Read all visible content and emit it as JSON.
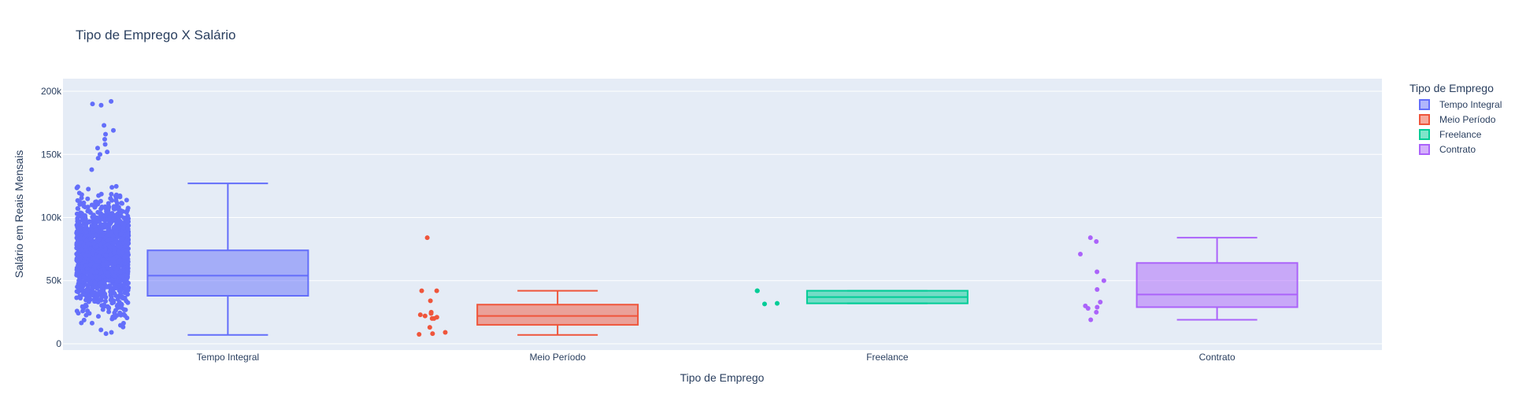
{
  "chart_data": {
    "type": "box",
    "title": "Tipo de Emprego X Salário",
    "xlabel": "Tipo de Emprego",
    "ylabel": "Salário em Reais Mensais",
    "ylim": [
      -5000,
      210000
    ],
    "yticks": [
      0,
      50000,
      100000,
      150000,
      200000
    ],
    "ytick_labels": [
      "0",
      "50k",
      "100k",
      "150k",
      "200k"
    ],
    "categories": [
      "Tempo Integral",
      "Meio Período",
      "Freelance",
      "Contrato"
    ],
    "legend": {
      "title": "Tipo de Emprego",
      "position": "top-right"
    },
    "grid": true,
    "boxpoints": "all",
    "series": [
      {
        "name": "Tempo Integral",
        "color": "#636efa",
        "min": 7000,
        "q1": 38000,
        "median": 54000,
        "q3": 74000,
        "max": 127000,
        "points": [
          192000,
          190000,
          189000,
          173000,
          169000,
          166000,
          162000,
          158000,
          155000,
          152000,
          150000,
          147000,
          9000,
          11000,
          8000
        ]
      },
      {
        "name": "Meio Período",
        "color": "#ef553b",
        "min": 7000,
        "q1": 15000,
        "median": 22000,
        "q3": 31000,
        "max": 42000,
        "points": [
          84000,
          42000,
          42000,
          34000,
          25000,
          24000,
          23000,
          22000,
          21000,
          20000,
          20000,
          13000,
          9000,
          8000,
          7500
        ]
      },
      {
        "name": "Freelance",
        "color": "#00cc96",
        "min": 32000,
        "q1": 32000,
        "median": 37000,
        "q3": 42000,
        "max": 42000,
        "points": [
          42000,
          42000,
          32000,
          31500
        ]
      },
      {
        "name": "Contrato",
        "color": "#ab63fa",
        "min": 19000,
        "q1": 29000,
        "median": 39000,
        "q3": 64000,
        "max": 84000,
        "points": [
          84000,
          81000,
          71000,
          57000,
          50000,
          43000,
          33000,
          30000,
          29000,
          28000,
          25000,
          19000
        ]
      }
    ]
  }
}
